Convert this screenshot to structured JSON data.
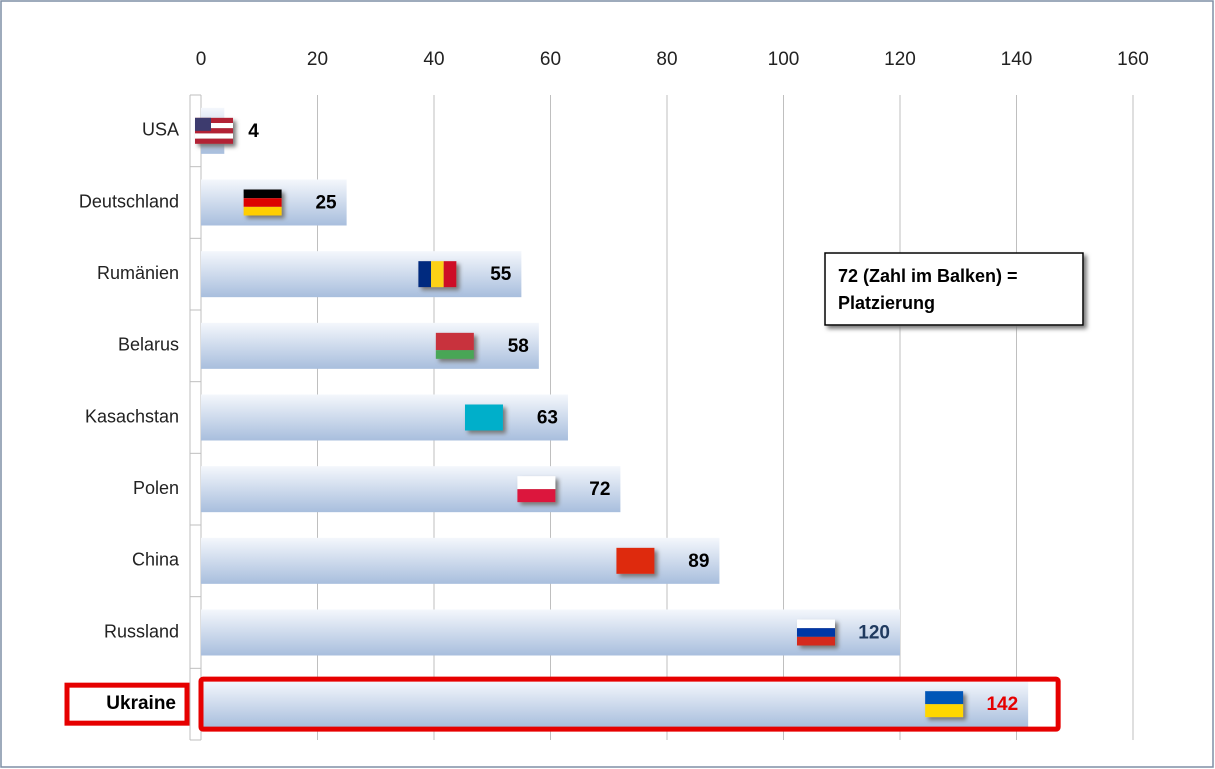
{
  "chart_data": {
    "type": "hbar",
    "categories": [
      "USA",
      "Deutschland",
      "Rumänien",
      "Belarus",
      "Kasachstan",
      "Polen",
      "China",
      "Russland",
      "Ukraine"
    ],
    "values": [
      4,
      25,
      55,
      58,
      63,
      72,
      89,
      120,
      142
    ],
    "label_colors": [
      "#000000",
      "#000000",
      "#000000",
      "#000000",
      "#000000",
      "#000000",
      "#000000",
      "#1f3a5f",
      "#e60000"
    ],
    "xlim": [
      0,
      160
    ],
    "xticks": [
      0,
      20,
      40,
      60,
      80,
      100,
      120,
      140,
      160
    ],
    "grid": true,
    "highlight_index": 8,
    "annotation": [
      "72 (Zahl im Balken) =",
      "Platzierung"
    ]
  }
}
